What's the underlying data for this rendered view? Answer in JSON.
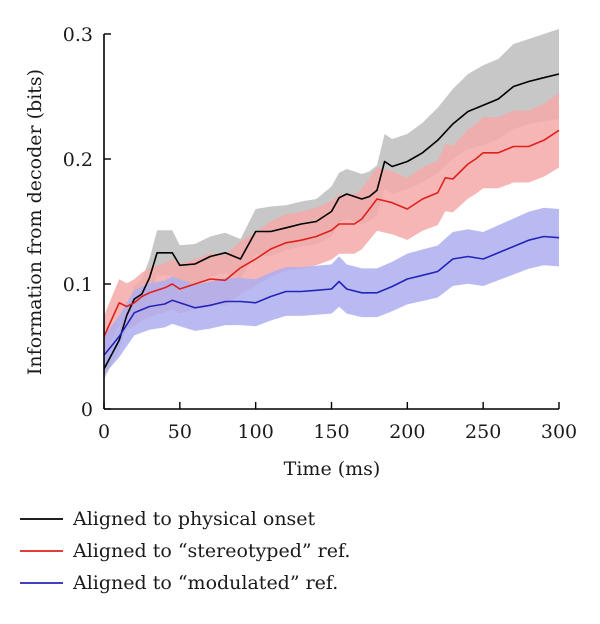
{
  "chart_data": {
    "type": "line",
    "xlabel": "Time (ms)",
    "ylabel": "Information from decoder (bits)",
    "xlim": [
      0,
      300
    ],
    "ylim": [
      0,
      0.3
    ],
    "x_ticks": [
      "0",
      "50",
      "100",
      "150",
      "200",
      "250",
      "300"
    ],
    "y_ticks": [
      "0",
      "0.1",
      "0.2",
      "0.3"
    ],
    "grid": false,
    "legend_position": "bottom",
    "series": [
      {
        "name": "Aligned to physical onset",
        "color": "#000000",
        "band_color": "#bdbdbd",
        "x": [
          0,
          10,
          15,
          20,
          25,
          30,
          35,
          40,
          45,
          50,
          60,
          70,
          80,
          90,
          100,
          110,
          120,
          130,
          140,
          150,
          155,
          160,
          165,
          170,
          175,
          180,
          185,
          190,
          200,
          210,
          220,
          230,
          240,
          250,
          260,
          270,
          280,
          290,
          300
        ],
        "y": [
          0.032,
          0.055,
          0.075,
          0.088,
          0.092,
          0.105,
          0.125,
          0.125,
          0.125,
          0.115,
          0.116,
          0.122,
          0.125,
          0.12,
          0.142,
          0.142,
          0.145,
          0.148,
          0.15,
          0.158,
          0.169,
          0.172,
          0.17,
          0.168,
          0.17,
          0.175,
          0.198,
          0.194,
          0.198,
          0.205,
          0.215,
          0.228,
          0.238,
          0.243,
          0.248,
          0.258,
          0.262,
          0.265,
          0.268
        ],
        "band_halfwidth": [
          0.008,
          0.008,
          0.008,
          0.01,
          0.012,
          0.015,
          0.018,
          0.018,
          0.018,
          0.016,
          0.016,
          0.016,
          0.016,
          0.016,
          0.018,
          0.02,
          0.018,
          0.018,
          0.018,
          0.02,
          0.02,
          0.02,
          0.02,
          0.02,
          0.02,
          0.02,
          0.022,
          0.022,
          0.022,
          0.024,
          0.026,
          0.028,
          0.03,
          0.032,
          0.032,
          0.034,
          0.034,
          0.035,
          0.036
        ]
      },
      {
        "name": "Aligned to “stereotyped” ref.",
        "color": "#e0201b",
        "band_color": "#f5a9a9",
        "x": [
          0,
          10,
          15,
          20,
          25,
          30,
          40,
          45,
          50,
          60,
          70,
          80,
          90,
          100,
          110,
          120,
          130,
          140,
          150,
          155,
          160,
          165,
          170,
          180,
          190,
          200,
          210,
          220,
          225,
          230,
          240,
          245,
          250,
          260,
          270,
          280,
          290,
          300
        ],
        "y": [
          0.058,
          0.085,
          0.082,
          0.085,
          0.09,
          0.093,
          0.097,
          0.1,
          0.096,
          0.1,
          0.104,
          0.103,
          0.113,
          0.12,
          0.128,
          0.133,
          0.135,
          0.138,
          0.143,
          0.148,
          0.148,
          0.148,
          0.152,
          0.168,
          0.165,
          0.16,
          0.168,
          0.173,
          0.185,
          0.184,
          0.196,
          0.2,
          0.205,
          0.205,
          0.21,
          0.21,
          0.215,
          0.223
        ]
      },
      {
        "name": "Aligned to “modulated” ref.",
        "color": "#2424b8",
        "band_color": "#aeaef0",
        "x": [
          0,
          10,
          20,
          30,
          40,
          45,
          50,
          60,
          70,
          80,
          90,
          100,
          110,
          120,
          130,
          140,
          150,
          155,
          160,
          170,
          180,
          190,
          200,
          210,
          220,
          230,
          240,
          250,
          260,
          270,
          280,
          290,
          300
        ],
        "y": [
          0.043,
          0.058,
          0.077,
          0.082,
          0.084,
          0.087,
          0.085,
          0.081,
          0.083,
          0.086,
          0.086,
          0.085,
          0.09,
          0.094,
          0.094,
          0.095,
          0.096,
          0.102,
          0.096,
          0.093,
          0.093,
          0.098,
          0.104,
          0.107,
          0.11,
          0.12,
          0.122,
          0.12,
          0.125,
          0.13,
          0.135,
          0.138,
          0.137
        ]
      }
    ]
  }
}
